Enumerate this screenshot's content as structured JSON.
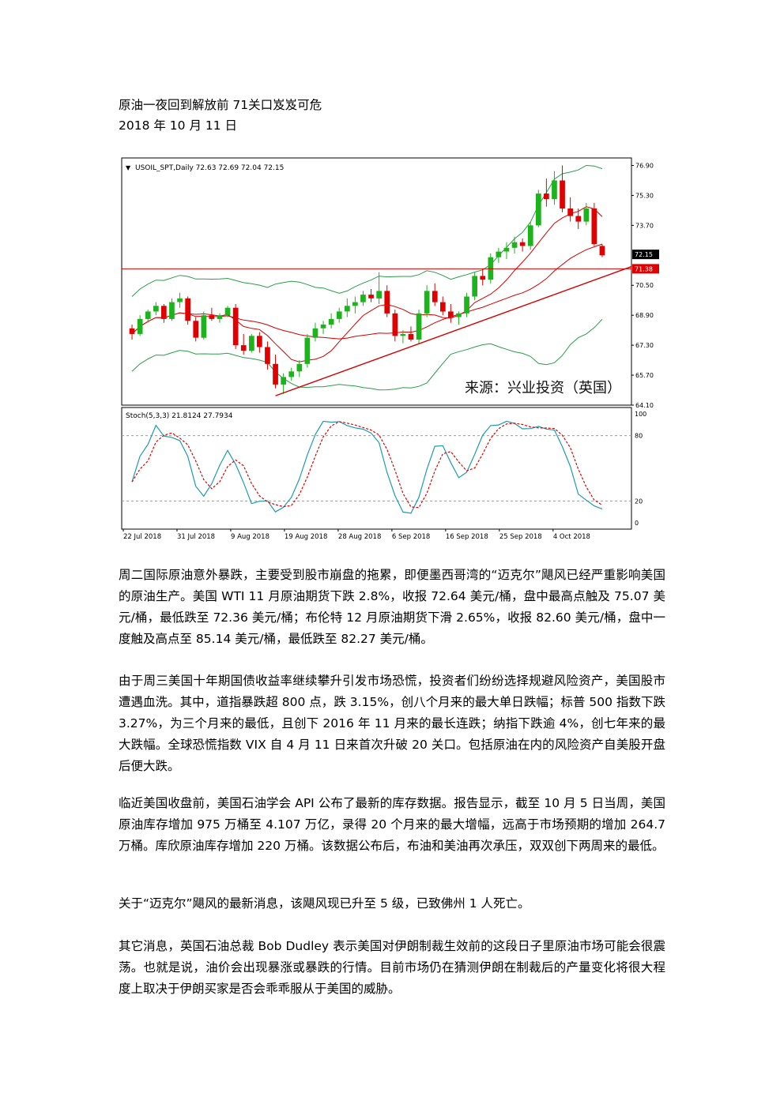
{
  "document": {
    "title": "原油一夜回到解放前 71关口岌岌可危",
    "date": "2018 年 10 月 11 日"
  },
  "chart_data": {
    "type": "candlestick",
    "header": "USOIL_SPT,Daily  72.63 72.69 72.04 72.15",
    "source_label": "来源：兴业投资（英国）",
    "price_ticks": [
      "76.90",
      "75.30",
      "73.70",
      "72.15",
      "71.38",
      "70.50",
      "68.90",
      "67.30",
      "65.70",
      "64.10"
    ],
    "price_ylim": [
      64.1,
      77.3
    ],
    "last_price": "72.15",
    "horizontal_level": "71.38",
    "oscillator": {
      "header": "Stoch(5,3,3) 21.8124 27.7934",
      "ticks": [
        "100",
        "80",
        "20",
        "0"
      ],
      "ylim": [
        0,
        100
      ],
      "levels": [
        80,
        20
      ]
    },
    "x_labels": [
      "22 Jul 2018",
      "31 Jul 2018",
      "9 Aug 2018",
      "19 Aug 2018",
      "28 Aug 2018",
      "6 Sep 2018",
      "16 Sep 2018",
      "25 Sep 2018",
      "4 Oct 2018"
    ],
    "candles": [
      [
        68.2,
        68.4,
        67.6,
        67.9
      ],
      [
        67.9,
        68.9,
        67.8,
        68.7
      ],
      [
        68.7,
        69.2,
        68.5,
        69.1
      ],
      [
        69.1,
        69.6,
        68.9,
        69.4
      ],
      [
        69.4,
        69.5,
        68.5,
        68.7
      ],
      [
        68.7,
        69.8,
        68.6,
        69.6
      ],
      [
        69.6,
        70.1,
        69.3,
        69.8
      ],
      [
        69.8,
        69.9,
        68.4,
        68.6
      ],
      [
        68.6,
        68.8,
        67.5,
        67.7
      ],
      [
        67.7,
        69.1,
        67.6,
        68.9
      ],
      [
        68.9,
        69.3,
        68.6,
        68.7
      ],
      [
        68.7,
        69.0,
        68.5,
        68.9
      ],
      [
        68.9,
        69.4,
        68.8,
        69.3
      ],
      [
        69.3,
        69.5,
        67.1,
        67.3
      ],
      [
        67.3,
        67.9,
        66.8,
        67.0
      ],
      [
        67.0,
        67.9,
        66.9,
        67.8
      ],
      [
        67.8,
        68.0,
        66.9,
        67.2
      ],
      [
        67.2,
        67.5,
        66.0,
        66.3
      ],
      [
        66.3,
        66.8,
        65.0,
        65.2
      ],
      [
        65.2,
        65.8,
        64.7,
        65.6
      ],
      [
        65.6,
        66.1,
        65.4,
        65.9
      ],
      [
        65.9,
        66.5,
        65.6,
        66.3
      ],
      [
        66.3,
        67.9,
        66.1,
        67.7
      ],
      [
        67.7,
        68.5,
        67.5,
        68.2
      ],
      [
        68.2,
        68.6,
        67.9,
        68.4
      ],
      [
        68.4,
        69.0,
        68.2,
        68.7
      ],
      [
        68.7,
        69.3,
        68.5,
        69.1
      ],
      [
        69.1,
        69.8,
        68.8,
        69.4
      ],
      [
        69.4,
        69.9,
        69.0,
        69.6
      ],
      [
        69.6,
        70.2,
        69.4,
        70.0
      ],
      [
        70.0,
        70.3,
        69.6,
        69.8
      ],
      [
        69.8,
        71.2,
        69.5,
        70.2
      ],
      [
        70.2,
        70.5,
        68.8,
        69.0
      ],
      [
        69.0,
        69.2,
        67.5,
        67.8
      ],
      [
        67.8,
        68.1,
        67.4,
        67.9
      ],
      [
        67.9,
        68.3,
        67.5,
        67.6
      ],
      [
        67.6,
        69.2,
        67.4,
        69.0
      ],
      [
        69.0,
        70.5,
        68.8,
        70.2
      ],
      [
        70.2,
        70.6,
        69.4,
        69.6
      ],
      [
        69.6,
        69.9,
        68.9,
        69.1
      ],
      [
        69.1,
        69.5,
        68.5,
        68.8
      ],
      [
        68.8,
        69.1,
        68.4,
        69.0
      ],
      [
        69.0,
        70.1,
        68.8,
        69.9
      ],
      [
        69.9,
        71.2,
        69.7,
        71.0
      ],
      [
        71.0,
        71.4,
        70.5,
        70.8
      ],
      [
        70.8,
        72.2,
        70.6,
        72.0
      ],
      [
        72.0,
        72.5,
        71.7,
        72.3
      ],
      [
        72.3,
        72.8,
        71.9,
        72.5
      ],
      [
        72.5,
        73.1,
        72.2,
        72.8
      ],
      [
        72.8,
        73.0,
        72.3,
        72.6
      ],
      [
        72.6,
        73.9,
        72.4,
        73.7
      ],
      [
        73.7,
        75.6,
        73.6,
        75.4
      ],
      [
        75.4,
        76.2,
        74.7,
        75.1
      ],
      [
        75.1,
        76.6,
        74.8,
        76.1
      ],
      [
        76.1,
        76.9,
        74.4,
        74.6
      ],
      [
        74.6,
        75.2,
        73.9,
        74.2
      ],
      [
        74.2,
        74.6,
        73.5,
        73.9
      ],
      [
        73.9,
        74.9,
        73.7,
        74.6
      ],
      [
        74.6,
        74.9,
        72.6,
        72.7
      ],
      [
        72.6,
        72.7,
        72.0,
        72.1
      ]
    ]
  },
  "paragraphs": [
    "周二国际原油意外暴跌，主要受到股市崩盘的拖累，即便墨西哥湾的“迈克尔”飓风已经严重影响美国的原油生产。美国 WTI 11 月原油期货下跌 2.8%，收报 72.64 美元/桶，盘中最高点触及 75.07 美元/桶，最低跌至 72.36 美元/桶；布伦特 12 月原油期货下滑 2.65%，收报 82.60 美元/桶，盘中一度触及高点至 85.14 美元/桶，最低跌至 82.27 美元/桶。",
    "由于周三美国十年期国债收益率继续攀升引发市场恐慌，投资者们纷纷选择规避风险资产，美国股市遭遇血洗。其中，道指暴跌超 800 点，跌 3.15%，创八个月来的最大单日跌幅；标普 500 指数下跌 3.27%，为三个月来的最低，且创下 2016 年 11 月来的最长连跌；纳指下跌逾 4%，创七年来的最大跌幅。全球恐慌指数 VIX 自 4 月 11 日来首次升破 20 关口。包括原油在内的风险资产自美股开盘后便大跌。",
    "临近美国收盘前，美国石油学会 API 公布了最新的库存数据。报告显示，截至 10 月 5 日当周，美国原油库存增加 975 万桶至 4.107 万亿，录得 20 个月来的最大增幅，远高于市场预期的增加 264.7 万桶。库欣原油库存增加 220 万桶。该数据公布后，布油和美油再次承压，双双创下两周来的最低。",
    "关于“迈克尔”飓风的最新消息，该飓风现已升至 5 级，已致佛州 1 人死亡。",
    "其它消息，英国石油总裁 Bob Dudley 表示美国对伊朗制裁生效前的这段日子里原油市场可能会很震荡。也就是说，油价会出现暴涨或暴跌的行情。目前市场仍在猜测伊朗在制裁后的产量变化将很大程度上取决于伊朗买家是否会乖乖服从于美国的威胁。"
  ]
}
